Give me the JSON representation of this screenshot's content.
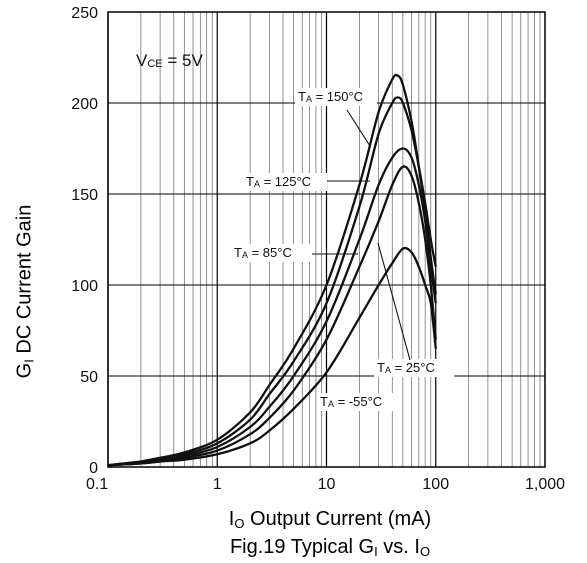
{
  "chart_data": {
    "type": "line",
    "title": "",
    "caption": {
      "prefix": "Fig.19 Typical G",
      "sub1": "I",
      "mid": " vs. I",
      "sub2": "O"
    },
    "xlabel": {
      "main": "I",
      "sub": "O",
      "rest": " Output Current (mA)"
    },
    "ylabel": {
      "main": "G",
      "sub": "I",
      "rest": " DC Current Gain"
    },
    "x_scale": "log",
    "xlim": [
      0.1,
      1000
    ],
    "ylim": [
      0,
      250
    ],
    "x_ticks": [
      0.1,
      1,
      10,
      100,
      1000
    ],
    "x_tick_labels": [
      "0.1",
      "1",
      "10",
      "100",
      "1,000"
    ],
    "y_ticks": [
      0,
      50,
      100,
      150,
      200,
      250
    ],
    "y_tick_labels": [
      "0",
      "50",
      "100",
      "150",
      "200",
      "250"
    ],
    "grid": true,
    "condition": {
      "main": "V",
      "sub": "CE",
      "rest": " = 5V"
    },
    "series": [
      {
        "label": {
          "main": "T",
          "sub": "A",
          "rest": " = 150°C"
        },
        "x": [
          0.1,
          0.2,
          0.3,
          0.5,
          1,
          2,
          3,
          5,
          10,
          20,
          30,
          40,
          45,
          50,
          60,
          70,
          80,
          90,
          100
        ],
        "y": [
          1,
          3,
          5,
          8,
          15,
          30,
          45,
          65,
          100,
          155,
          195,
          213,
          215,
          210,
          190,
          165,
          140,
          115,
          95
        ]
      },
      {
        "label": {
          "main": "T",
          "sub": "A",
          "rest": " = 125°C"
        },
        "x": [
          0.1,
          0.2,
          0.3,
          0.5,
          1,
          2,
          3,
          5,
          10,
          20,
          30,
          40,
          45,
          50,
          60,
          70,
          80,
          90,
          100
        ],
        "y": [
          1,
          3,
          5,
          7,
          13,
          26,
          40,
          58,
          90,
          143,
          183,
          200,
          203,
          200,
          185,
          165,
          145,
          125,
          110
        ]
      },
      {
        "label": {
          "main": "T",
          "sub": "A",
          "rest": " = 85°C"
        },
        "x": [
          0.1,
          0.2,
          0.3,
          0.5,
          1,
          2,
          3,
          5,
          10,
          20,
          30,
          40,
          50,
          60,
          70,
          80,
          90,
          100
        ],
        "y": [
          1,
          2,
          4,
          6,
          11,
          22,
          33,
          50,
          80,
          125,
          155,
          170,
          175,
          170,
          155,
          135,
          110,
          90
        ]
      },
      {
        "label": {
          "main": "T",
          "sub": "A",
          "rest": " = 25°C"
        },
        "x": [
          0.1,
          0.2,
          0.3,
          0.5,
          1,
          2,
          3,
          5,
          10,
          20,
          30,
          40,
          50,
          60,
          70,
          80,
          90,
          100
        ],
        "y": [
          1,
          2,
          3,
          5,
          9,
          18,
          27,
          42,
          70,
          110,
          135,
          155,
          165,
          160,
          145,
          125,
          100,
          70
        ]
      },
      {
        "label": {
          "main": "T",
          "sub": "A",
          "rest": " = -55°C"
        },
        "x": [
          0.1,
          0.2,
          0.3,
          0.5,
          1,
          2,
          3,
          5,
          10,
          20,
          30,
          40,
          50,
          60,
          70,
          80,
          90,
          100
        ],
        "y": [
          1,
          2,
          3,
          4,
          7,
          13,
          20,
          32,
          52,
          82,
          100,
          112,
          120,
          118,
          110,
          100,
          90,
          65
        ]
      }
    ]
  }
}
